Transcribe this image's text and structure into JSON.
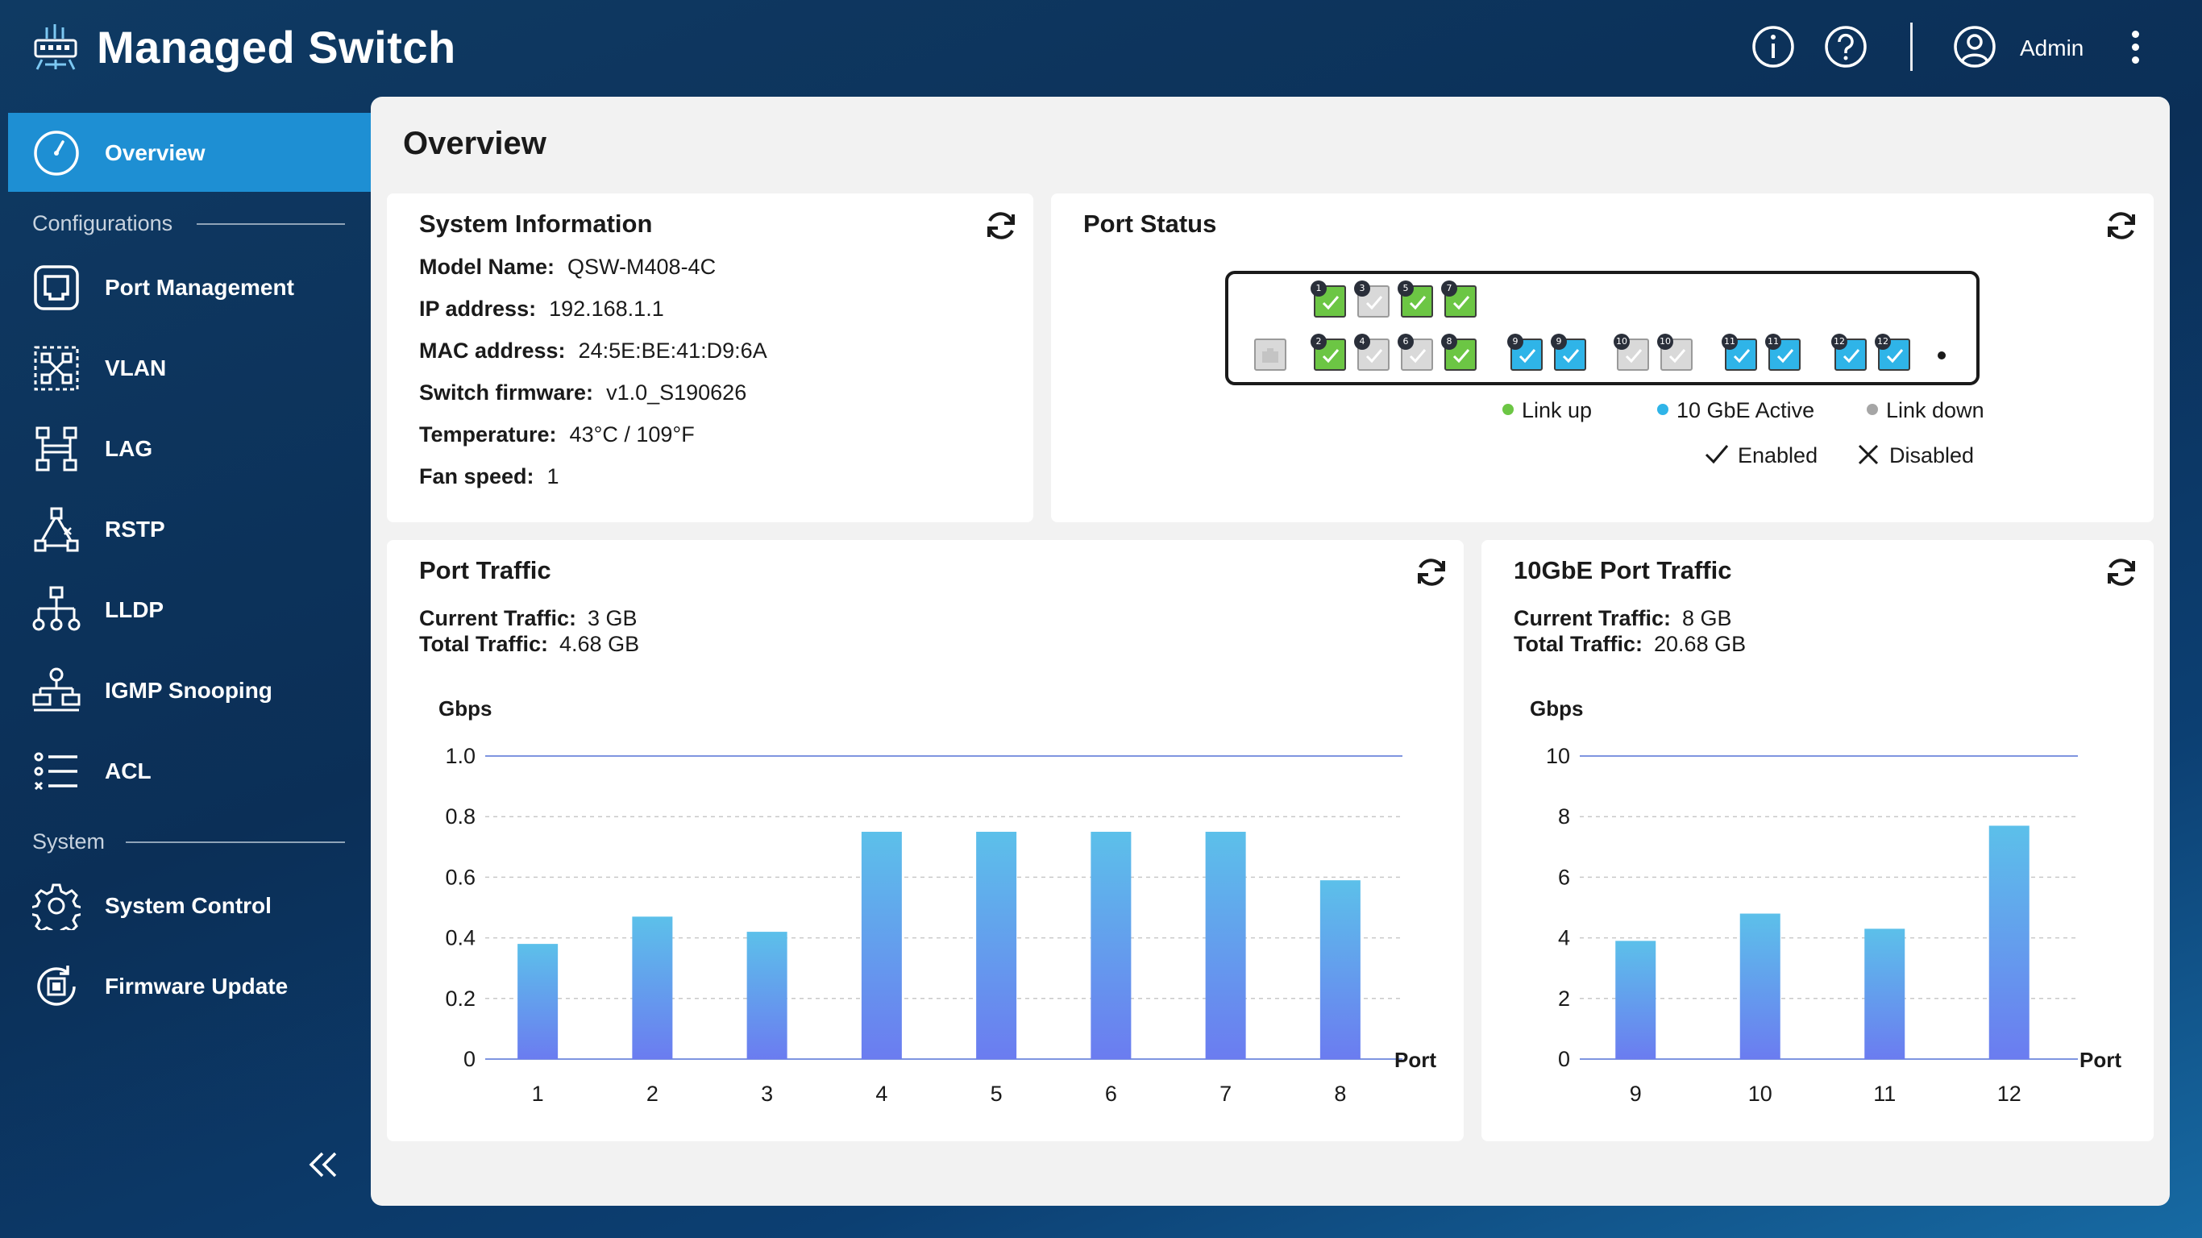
{
  "app": {
    "title": "Managed Switch",
    "user": "Admin"
  },
  "header_icons": [
    "info-icon",
    "help-icon",
    "user-icon",
    "more-vertical-icon"
  ],
  "sidebar": {
    "items": [
      {
        "label": "Overview",
        "icon": "gauge-icon",
        "active": true
      },
      {
        "label": "Port Management",
        "icon": "port-icon"
      },
      {
        "label": "VLAN",
        "icon": "vlan-icon"
      },
      {
        "label": "LAG",
        "icon": "lag-icon"
      },
      {
        "label": "RSTP",
        "icon": "rstp-icon"
      },
      {
        "label": "LLDP",
        "icon": "lldp-icon"
      },
      {
        "label": "IGMP Snooping",
        "icon": "igmp-icon"
      },
      {
        "label": "ACL",
        "icon": "acl-icon"
      },
      {
        "label": "System Control",
        "icon": "gear-icon"
      },
      {
        "label": "Firmware Update",
        "icon": "firmware-icon"
      }
    ],
    "sections": {
      "configurations": "Configurations",
      "system": "System"
    }
  },
  "page": {
    "title": "Overview"
  },
  "system_info": {
    "title": "System Information",
    "rows": [
      {
        "k": "Model Name:",
        "v": "QSW-M408-4C"
      },
      {
        "k": "IP address:",
        "v": "192.168.1.1"
      },
      {
        "k": "MAC address:",
        "v": "24:5E:BE:41:D9:6A"
      },
      {
        "k": "Switch firmware:",
        "v": "v1.0_S190626"
      },
      {
        "k": "Temperature:",
        "v": "43°C / 109°F"
      },
      {
        "k": "Fan speed:",
        "v": "1"
      }
    ]
  },
  "port_status": {
    "title": "Port Status",
    "legend": {
      "link_up": "Link up",
      "active_10g": "10 GbE Active",
      "link_down": "Link down",
      "enabled": "Enabled",
      "disabled": "Disabled"
    },
    "colors": {
      "link_up": "#6cc644",
      "active_10g": "#2fb4e8",
      "link_down": "#d9d9d9"
    },
    "top_row": [
      {
        "num": "1",
        "state": "link_up"
      },
      {
        "num": "3",
        "state": "link_down"
      },
      {
        "num": "5",
        "state": "link_up"
      },
      {
        "num": "7",
        "state": "link_up"
      }
    ],
    "bottom_row": [
      {
        "num": "",
        "state": "link_down",
        "noCheck": true
      },
      {
        "num": "2",
        "state": "link_up"
      },
      {
        "num": "4",
        "state": "link_down"
      },
      {
        "num": "6",
        "state": "link_down"
      },
      {
        "num": "8",
        "state": "link_up"
      },
      {
        "num": "9",
        "state": "active_10g"
      },
      {
        "num": "9",
        "state": "active_10g"
      },
      {
        "num": "10",
        "state": "link_down"
      },
      {
        "num": "10",
        "state": "link_down"
      },
      {
        "num": "11",
        "state": "active_10g"
      },
      {
        "num": "11",
        "state": "active_10g"
      },
      {
        "num": "12",
        "state": "active_10g"
      },
      {
        "num": "12",
        "state": "active_10g"
      }
    ]
  },
  "port_traffic": {
    "title": "Port Traffic",
    "current_label": "Current Traffic:",
    "current": "3 GB",
    "total_label": "Total Traffic:",
    "total": "4.68 GB"
  },
  "port_traffic_10g": {
    "title": "10GbE Port Traffic",
    "current_label": "Current Traffic:",
    "current": "8 GB",
    "total_label": "Total Traffic:",
    "total": "20.68 GB"
  },
  "chart_data": [
    {
      "type": "bar",
      "title": "Port Traffic",
      "ylabel": "Gbps",
      "xlabel": "Port",
      "categories": [
        "1",
        "2",
        "3",
        "4",
        "5",
        "6",
        "7",
        "8"
      ],
      "values": [
        0.38,
        0.47,
        0.42,
        0.75,
        0.75,
        0.75,
        0.75,
        0.59
      ],
      "ylim": [
        0,
        1.0
      ],
      "yticks": [
        "0",
        "0.2",
        "0.4",
        "0.6",
        "0.8",
        "1.0"
      ],
      "grid": true
    },
    {
      "type": "bar",
      "title": "10GbE Port Traffic",
      "ylabel": "Gbps",
      "xlabel": "Port",
      "categories": [
        "9",
        "10",
        "11",
        "12"
      ],
      "values": [
        3.9,
        4.8,
        4.3,
        7.7
      ],
      "ylim": [
        0,
        10
      ],
      "yticks": [
        "0",
        "2",
        "4",
        "6",
        "8",
        "10"
      ],
      "grid": true
    }
  ],
  "colors": {
    "accent": "#1e8fd3",
    "bar_top": "#5cc0ea",
    "bar_bottom": "#6b7cf0"
  }
}
